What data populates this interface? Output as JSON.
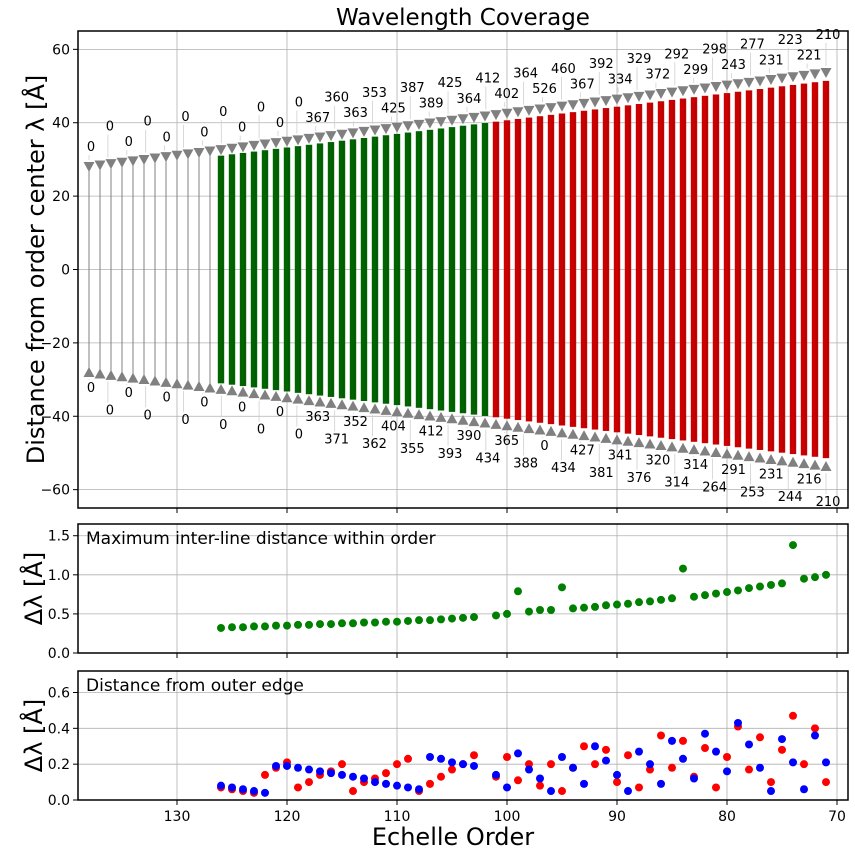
{
  "chart_data": [
    {
      "type": "bar",
      "title": "Wavelength Coverage",
      "ylabel": "Distance from order center λ [Å]",
      "xlabel": "",
      "xlim": [
        139,
        69
      ],
      "ylim": [
        -65,
        65
      ],
      "xticks": [
        130,
        120,
        110,
        100,
        90,
        80,
        70
      ],
      "yticks": [
        -60,
        -40,
        -20,
        0,
        20,
        40,
        60
      ],
      "grid": true,
      "orders": [
        138,
        137,
        136,
        135,
        134,
        133,
        132,
        131,
        130,
        129,
        128,
        127,
        126,
        125,
        124,
        123,
        122,
        121,
        120,
        119,
        118,
        117,
        116,
        115,
        114,
        113,
        112,
        111,
        110,
        109,
        108,
        107,
        106,
        105,
        104,
        103,
        102,
        101,
        100,
        99,
        98,
        97,
        96,
        95,
        94,
        93,
        92,
        91,
        90,
        89,
        88,
        87,
        86,
        85,
        84,
        83,
        82,
        81,
        80,
        79,
        78,
        77,
        76,
        75,
        74,
        73,
        72,
        71
      ],
      "half_width_from": 27.4,
      "half_width_to": 53.0,
      "colored_fraction": 0.97,
      "color_groups": [
        {
          "color": "#808080",
          "from_order": 138,
          "to_order": 127
        },
        {
          "color": "#006400",
          "from_order": 126,
          "to_order": 102
        },
        {
          "color": "#cc0000",
          "from_order": 101,
          "to_order": 71
        }
      ],
      "upper_labels": [
        "0",
        "0",
        "0",
        "0",
        "0",
        "0",
        "0",
        "0",
        "0",
        "0",
        "0",
        "0",
        "367",
        "360",
        "363",
        "353",
        "425",
        "387",
        "389",
        "425",
        "364",
        "412",
        "402",
        "364",
        "526",
        "460",
        "367",
        "392",
        "334",
        "329",
        "372",
        "292",
        "299",
        "298",
        "243",
        "277",
        "231",
        "223",
        "221",
        "210"
      ],
      "lower_labels": [
        "0",
        "0",
        "0",
        "0",
        "0",
        "0",
        "0",
        "0",
        "0",
        "0",
        "0",
        "0",
        "363",
        "371",
        "352",
        "362",
        "404",
        "355",
        "412",
        "393",
        "390",
        "434",
        "365",
        "388",
        "0",
        "434",
        "427",
        "381",
        "341",
        "376",
        "320",
        "314",
        "314",
        "264",
        "291",
        "253",
        "231",
        "244",
        "216",
        "210"
      ]
    },
    {
      "type": "scatter",
      "annotation": "Maximum inter-line distance within order",
      "ylabel": "Δλ [Å]",
      "ylim": [
        0,
        1.65
      ],
      "yticks": [
        0.0,
        0.5,
        1.0,
        1.5
      ],
      "color": "#008000",
      "series": [
        {
          "x": [
            126,
            125,
            124,
            123,
            122,
            121,
            120,
            119,
            118,
            117,
            116,
            115,
            114,
            113,
            112,
            111,
            110,
            109,
            108,
            107,
            106,
            105,
            104,
            103,
            101,
            100,
            99,
            98,
            97,
            96,
            95,
            94,
            93,
            92,
            91,
            90,
            89,
            88,
            87,
            86,
            85,
            84,
            83,
            82,
            81,
            80,
            79,
            78,
            77,
            76,
            75,
            74,
            73,
            72,
            71
          ],
          "y": [
            0.32,
            0.33,
            0.33,
            0.34,
            0.34,
            0.35,
            0.35,
            0.36,
            0.36,
            0.37,
            0.37,
            0.38,
            0.38,
            0.39,
            0.39,
            0.4,
            0.4,
            0.41,
            0.42,
            0.42,
            0.43,
            0.44,
            0.45,
            0.46,
            0.48,
            0.5,
            0.79,
            0.53,
            0.55,
            0.55,
            0.84,
            0.57,
            0.58,
            0.59,
            0.61,
            0.62,
            0.63,
            0.65,
            0.66,
            0.68,
            0.7,
            1.08,
            0.72,
            0.74,
            0.76,
            0.78,
            0.8,
            0.83,
            0.85,
            0.87,
            0.89,
            1.38,
            0.95,
            0.97,
            1.0
          ]
        }
      ]
    },
    {
      "type": "scatter",
      "annotation": "Distance from outer edge",
      "ylabel": "Δλ [Å]",
      "xlabel": "Echelle Order",
      "ylim": [
        0,
        0.72
      ],
      "yticks": [
        0.0,
        0.2,
        0.4,
        0.6
      ],
      "series": [
        {
          "color": "#ff0000",
          "x": [
            126,
            125,
            124,
            123,
            122,
            121,
            120,
            119,
            118,
            117,
            116,
            115,
            114,
            113,
            112,
            111,
            110,
            109,
            108,
            107,
            106,
            105,
            104,
            103,
            101,
            100,
            99,
            98,
            97,
            96,
            95,
            94,
            93,
            92,
            91,
            90,
            89,
            88,
            87,
            86,
            85,
            84,
            83,
            82,
            81,
            80,
            79,
            78,
            77,
            76,
            75,
            74,
            73,
            72,
            71
          ],
          "y": [
            0.07,
            0.06,
            0.05,
            0.04,
            0.14,
            0.18,
            0.21,
            0.07,
            0.1,
            0.14,
            0.16,
            0.2,
            0.05,
            0.1,
            0.12,
            0.15,
            0.2,
            0.23,
            0.05,
            0.09,
            0.13,
            0.17,
            0.2,
            0.25,
            0.13,
            0.24,
            0.11,
            0.2,
            0.08,
            0.2,
            0.05,
            0.18,
            0.3,
            0.2,
            0.28,
            0.1,
            0.25,
            0.07,
            0.17,
            0.36,
            0.18,
            0.33,
            0.13,
            0.29,
            0.07,
            0.24,
            0.41,
            0.17,
            0.35,
            0.1,
            0.28,
            0.47,
            0.2,
            0.4,
            0.1
          ]
        },
        {
          "color": "#0000ff",
          "x": [
            126,
            125,
            124,
            123,
            122,
            121,
            120,
            119,
            118,
            117,
            116,
            115,
            114,
            113,
            112,
            111,
            110,
            109,
            108,
            107,
            106,
            105,
            104,
            103,
            101,
            100,
            99,
            98,
            97,
            96,
            95,
            94,
            93,
            92,
            91,
            90,
            89,
            88,
            87,
            86,
            85,
            84,
            83,
            82,
            81,
            80,
            79,
            78,
            77,
            76,
            75,
            74,
            73,
            72,
            71
          ],
          "y": [
            0.08,
            0.07,
            0.06,
            0.05,
            0.04,
            0.19,
            0.19,
            0.18,
            0.17,
            0.16,
            0.15,
            0.14,
            0.13,
            0.12,
            0.1,
            0.09,
            0.08,
            0.07,
            0.06,
            0.24,
            0.23,
            0.21,
            0.2,
            0.19,
            0.14,
            0.07,
            0.26,
            0.17,
            0.12,
            0.05,
            0.24,
            0.18,
            0.09,
            0.3,
            0.22,
            0.14,
            0.05,
            0.27,
            0.2,
            0.09,
            0.33,
            0.23,
            0.12,
            0.37,
            0.27,
            0.16,
            0.43,
            0.31,
            0.18,
            0.05,
            0.34,
            0.21,
            0.06,
            0.36,
            0.21
          ]
        }
      ]
    }
  ]
}
